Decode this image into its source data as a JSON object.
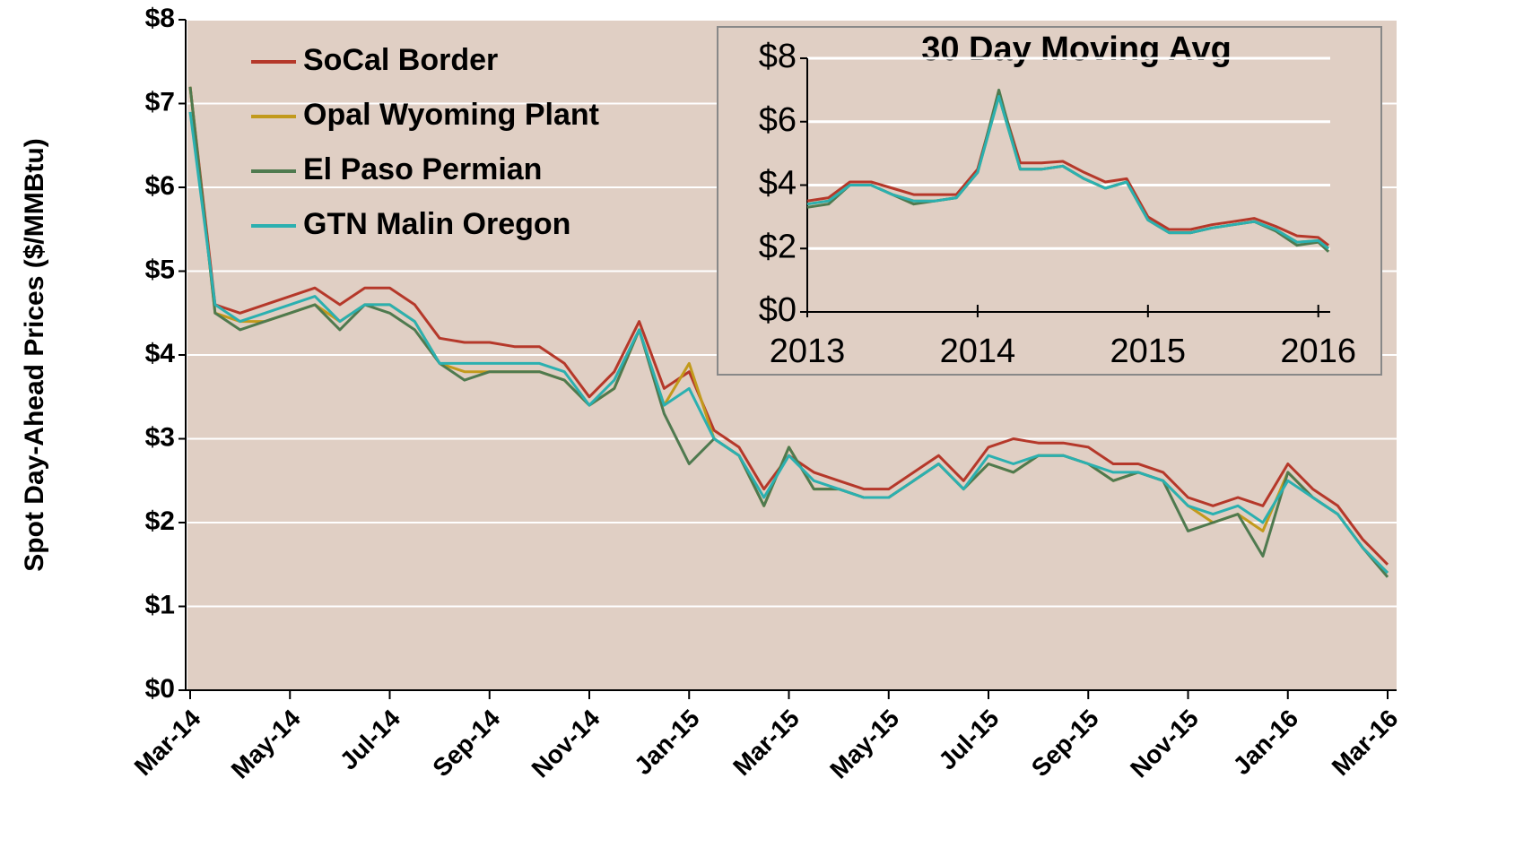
{
  "chart_data": [
    {
      "type": "line",
      "ylabel": "Spot Day-Ahead Prices ($/MMBtu)",
      "categories": [
        "Mar-14",
        null,
        null,
        null,
        "May-14",
        null,
        null,
        null,
        "Jul-14",
        null,
        null,
        null,
        "Sep-14",
        null,
        null,
        null,
        "Nov-14",
        null,
        null,
        null,
        "Jan-15",
        null,
        null,
        null,
        "Mar-15",
        null,
        null,
        null,
        "May-15",
        null,
        null,
        null,
        "Jul-15",
        null,
        null,
        null,
        "Sep-15",
        null,
        null,
        null,
        "Nov-15",
        null,
        null,
        null,
        "Jan-16",
        null,
        null,
        null,
        "Mar-16"
      ],
      "series": [
        {
          "name": "SoCal Border",
          "color": "#b5382a",
          "values": [
            7.2,
            4.6,
            4.5,
            4.6,
            4.7,
            4.8,
            4.6,
            4.8,
            4.8,
            4.6,
            4.2,
            4.15,
            4.15,
            4.1,
            4.1,
            3.9,
            3.5,
            3.8,
            4.4,
            3.6,
            3.8,
            3.1,
            2.9,
            2.4,
            2.8,
            2.6,
            2.5,
            2.4,
            2.4,
            2.6,
            2.8,
            2.5,
            2.9,
            3.0,
            2.95,
            2.95,
            2.9,
            2.7,
            2.7,
            2.6,
            2.3,
            2.2,
            2.3,
            2.2,
            2.7,
            2.4,
            2.2,
            1.8,
            1.5
          ]
        },
        {
          "name": "Opal Wyoming Plant",
          "color": "#c29a1c",
          "values": [
            7.2,
            4.5,
            4.4,
            4.4,
            4.5,
            4.6,
            4.4,
            4.6,
            4.6,
            4.4,
            3.9,
            3.8,
            3.8,
            3.8,
            3.8,
            3.7,
            3.4,
            3.6,
            4.3,
            3.4,
            3.9,
            3.0,
            2.8,
            2.2,
            2.9,
            2.4,
            2.4,
            2.3,
            2.3,
            2.5,
            2.7,
            2.4,
            2.7,
            2.6,
            2.8,
            2.8,
            2.7,
            2.5,
            2.6,
            2.5,
            2.2,
            2.0,
            2.1,
            1.9,
            2.6,
            2.3,
            2.1,
            1.7,
            1.4
          ]
        },
        {
          "name": "El Paso Permian",
          "color": "#4f7a4f",
          "values": [
            7.2,
            4.5,
            4.3,
            4.4,
            4.5,
            4.6,
            4.3,
            4.6,
            4.5,
            4.3,
            3.9,
            3.7,
            3.8,
            3.8,
            3.8,
            3.7,
            3.4,
            3.6,
            4.3,
            3.3,
            2.7,
            3.0,
            2.8,
            2.2,
            2.9,
            2.4,
            2.4,
            2.3,
            2.3,
            2.5,
            2.7,
            2.4,
            2.7,
            2.6,
            2.8,
            2.8,
            2.7,
            2.5,
            2.6,
            2.5,
            1.9,
            2.0,
            2.1,
            1.6,
            2.6,
            2.3,
            2.1,
            1.7,
            1.35
          ]
        },
        {
          "name": "GTN Malin Oregon",
          "color": "#2bb0b0",
          "values": [
            6.9,
            4.6,
            4.4,
            4.5,
            4.6,
            4.7,
            4.4,
            4.6,
            4.6,
            4.4,
            3.9,
            3.9,
            3.9,
            3.9,
            3.9,
            3.8,
            3.4,
            3.7,
            4.3,
            3.4,
            3.6,
            3.0,
            2.8,
            2.3,
            2.8,
            2.5,
            2.4,
            2.3,
            2.3,
            2.5,
            2.7,
            2.4,
            2.8,
            2.7,
            2.8,
            2.8,
            2.7,
            2.6,
            2.6,
            2.5,
            2.2,
            2.1,
            2.2,
            2.0,
            2.5,
            2.3,
            2.1,
            1.7,
            1.4
          ]
        }
      ],
      "ylim": [
        0,
        8
      ],
      "yticks": [
        {
          "value": 0,
          "label": "$0"
        },
        {
          "value": 1,
          "label": "$1"
        },
        {
          "value": 2,
          "label": "$2"
        },
        {
          "value": 3,
          "label": "$3"
        },
        {
          "value": 4,
          "label": "$4"
        },
        {
          "value": 5,
          "label": "$5"
        },
        {
          "value": 6,
          "label": "$6"
        },
        {
          "value": 7,
          "label": "$7"
        },
        {
          "value": 8,
          "label": "$8"
        }
      ],
      "grid": true,
      "legend": "upper left"
    },
    {
      "type": "line",
      "title": "30 Day Moving Avg",
      "x": [
        2013,
        2013.125,
        2013.25,
        2013.375,
        2013.5,
        2013.625,
        2013.75,
        2013.875,
        2014,
        2014.125,
        2014.25,
        2014.375,
        2014.5,
        2014.625,
        2014.75,
        2014.875,
        2015,
        2015.125,
        2015.25,
        2015.375,
        2015.5,
        2015.625,
        2015.75,
        2015.875,
        2016,
        2016.06
      ],
      "series": [
        {
          "color": "#b5382a",
          "values": [
            3.5,
            3.6,
            4.1,
            4.1,
            3.9,
            3.7,
            3.7,
            3.7,
            4.5,
            6.9,
            4.7,
            4.7,
            4.75,
            4.4,
            4.1,
            4.2,
            3.0,
            2.6,
            2.6,
            2.75,
            2.85,
            2.95,
            2.7,
            2.4,
            2.35,
            2.1
          ]
        },
        {
          "color": "#c29a1c",
          "values": [
            3.4,
            3.5,
            4.0,
            4.0,
            3.7,
            3.5,
            3.5,
            3.6,
            4.4,
            6.8,
            4.5,
            4.5,
            4.6,
            4.2,
            3.9,
            4.1,
            2.9,
            2.5,
            2.5,
            2.65,
            2.75,
            2.85,
            2.6,
            2.2,
            2.25,
            2.0
          ]
        },
        {
          "color": "#4f7a4f",
          "values": [
            3.3,
            3.4,
            4.0,
            4.0,
            3.7,
            3.4,
            3.5,
            3.6,
            4.4,
            7.0,
            4.5,
            4.5,
            4.6,
            4.2,
            3.9,
            4.1,
            2.9,
            2.5,
            2.5,
            2.65,
            2.75,
            2.85,
            2.55,
            2.1,
            2.2,
            1.9
          ]
        },
        {
          "color": "#2bb0b0",
          "values": [
            3.4,
            3.5,
            4.0,
            4.0,
            3.7,
            3.5,
            3.5,
            3.6,
            4.4,
            6.8,
            4.5,
            4.5,
            4.6,
            4.2,
            3.9,
            4.1,
            2.9,
            2.5,
            2.5,
            2.65,
            2.75,
            2.85,
            2.6,
            2.2,
            2.25,
            2.0
          ]
        }
      ],
      "xlim": [
        2013,
        2016.07
      ],
      "xticks": [
        2013,
        2014,
        2015,
        2016
      ],
      "ylim": [
        0,
        8
      ],
      "yticks": [
        {
          "value": 0,
          "label": "$0"
        },
        {
          "value": 2,
          "label": "$2"
        },
        {
          "value": 4,
          "label": "$4"
        },
        {
          "value": 6,
          "label": "$6"
        },
        {
          "value": 8,
          "label": "$8"
        }
      ],
      "grid": true
    }
  ]
}
